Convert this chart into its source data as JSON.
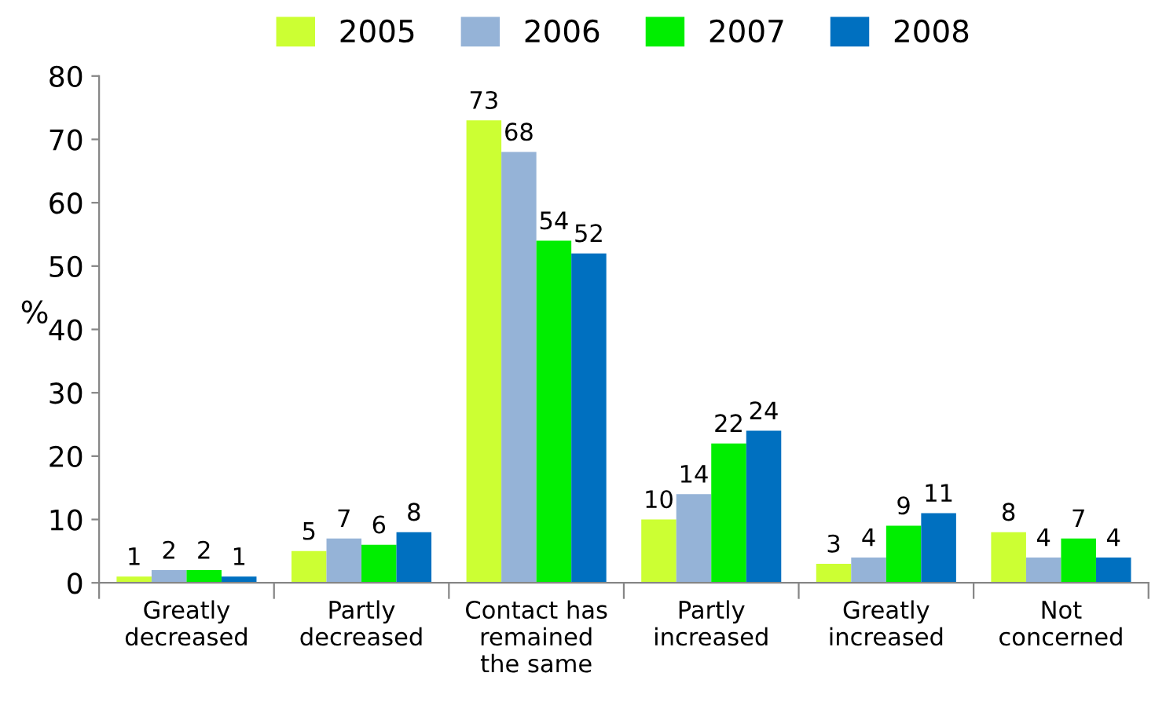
{
  "chart_data": {
    "type": "bar",
    "ylabel": "%",
    "categories": [
      "Greatly\ndecreased",
      "Partly\ndecreased",
      "Contact has\nremained\nthe same",
      "Partly\nincreased",
      "Greatly\nincreased",
      "Not\nconcerned"
    ],
    "series": [
      {
        "name": "2005",
        "color": "#ccff33",
        "values": [
          1,
          5,
          73,
          10,
          3,
          8
        ]
      },
      {
        "name": "2006",
        "color": "#95b3d7",
        "values": [
          2,
          7,
          68,
          14,
          4,
          4
        ]
      },
      {
        "name": "2007",
        "color": "#00ee00",
        "values": [
          2,
          6,
          54,
          22,
          9,
          7
        ]
      },
      {
        "name": "2008",
        "color": "#0070c0",
        "values": [
          1,
          8,
          52,
          24,
          11,
          4
        ]
      }
    ],
    "ylim": [
      0,
      80
    ],
    "yticks": [
      0,
      10,
      20,
      30,
      40,
      50,
      60,
      70,
      80
    ],
    "data_labels": true,
    "grid": false,
    "legend": "top"
  }
}
